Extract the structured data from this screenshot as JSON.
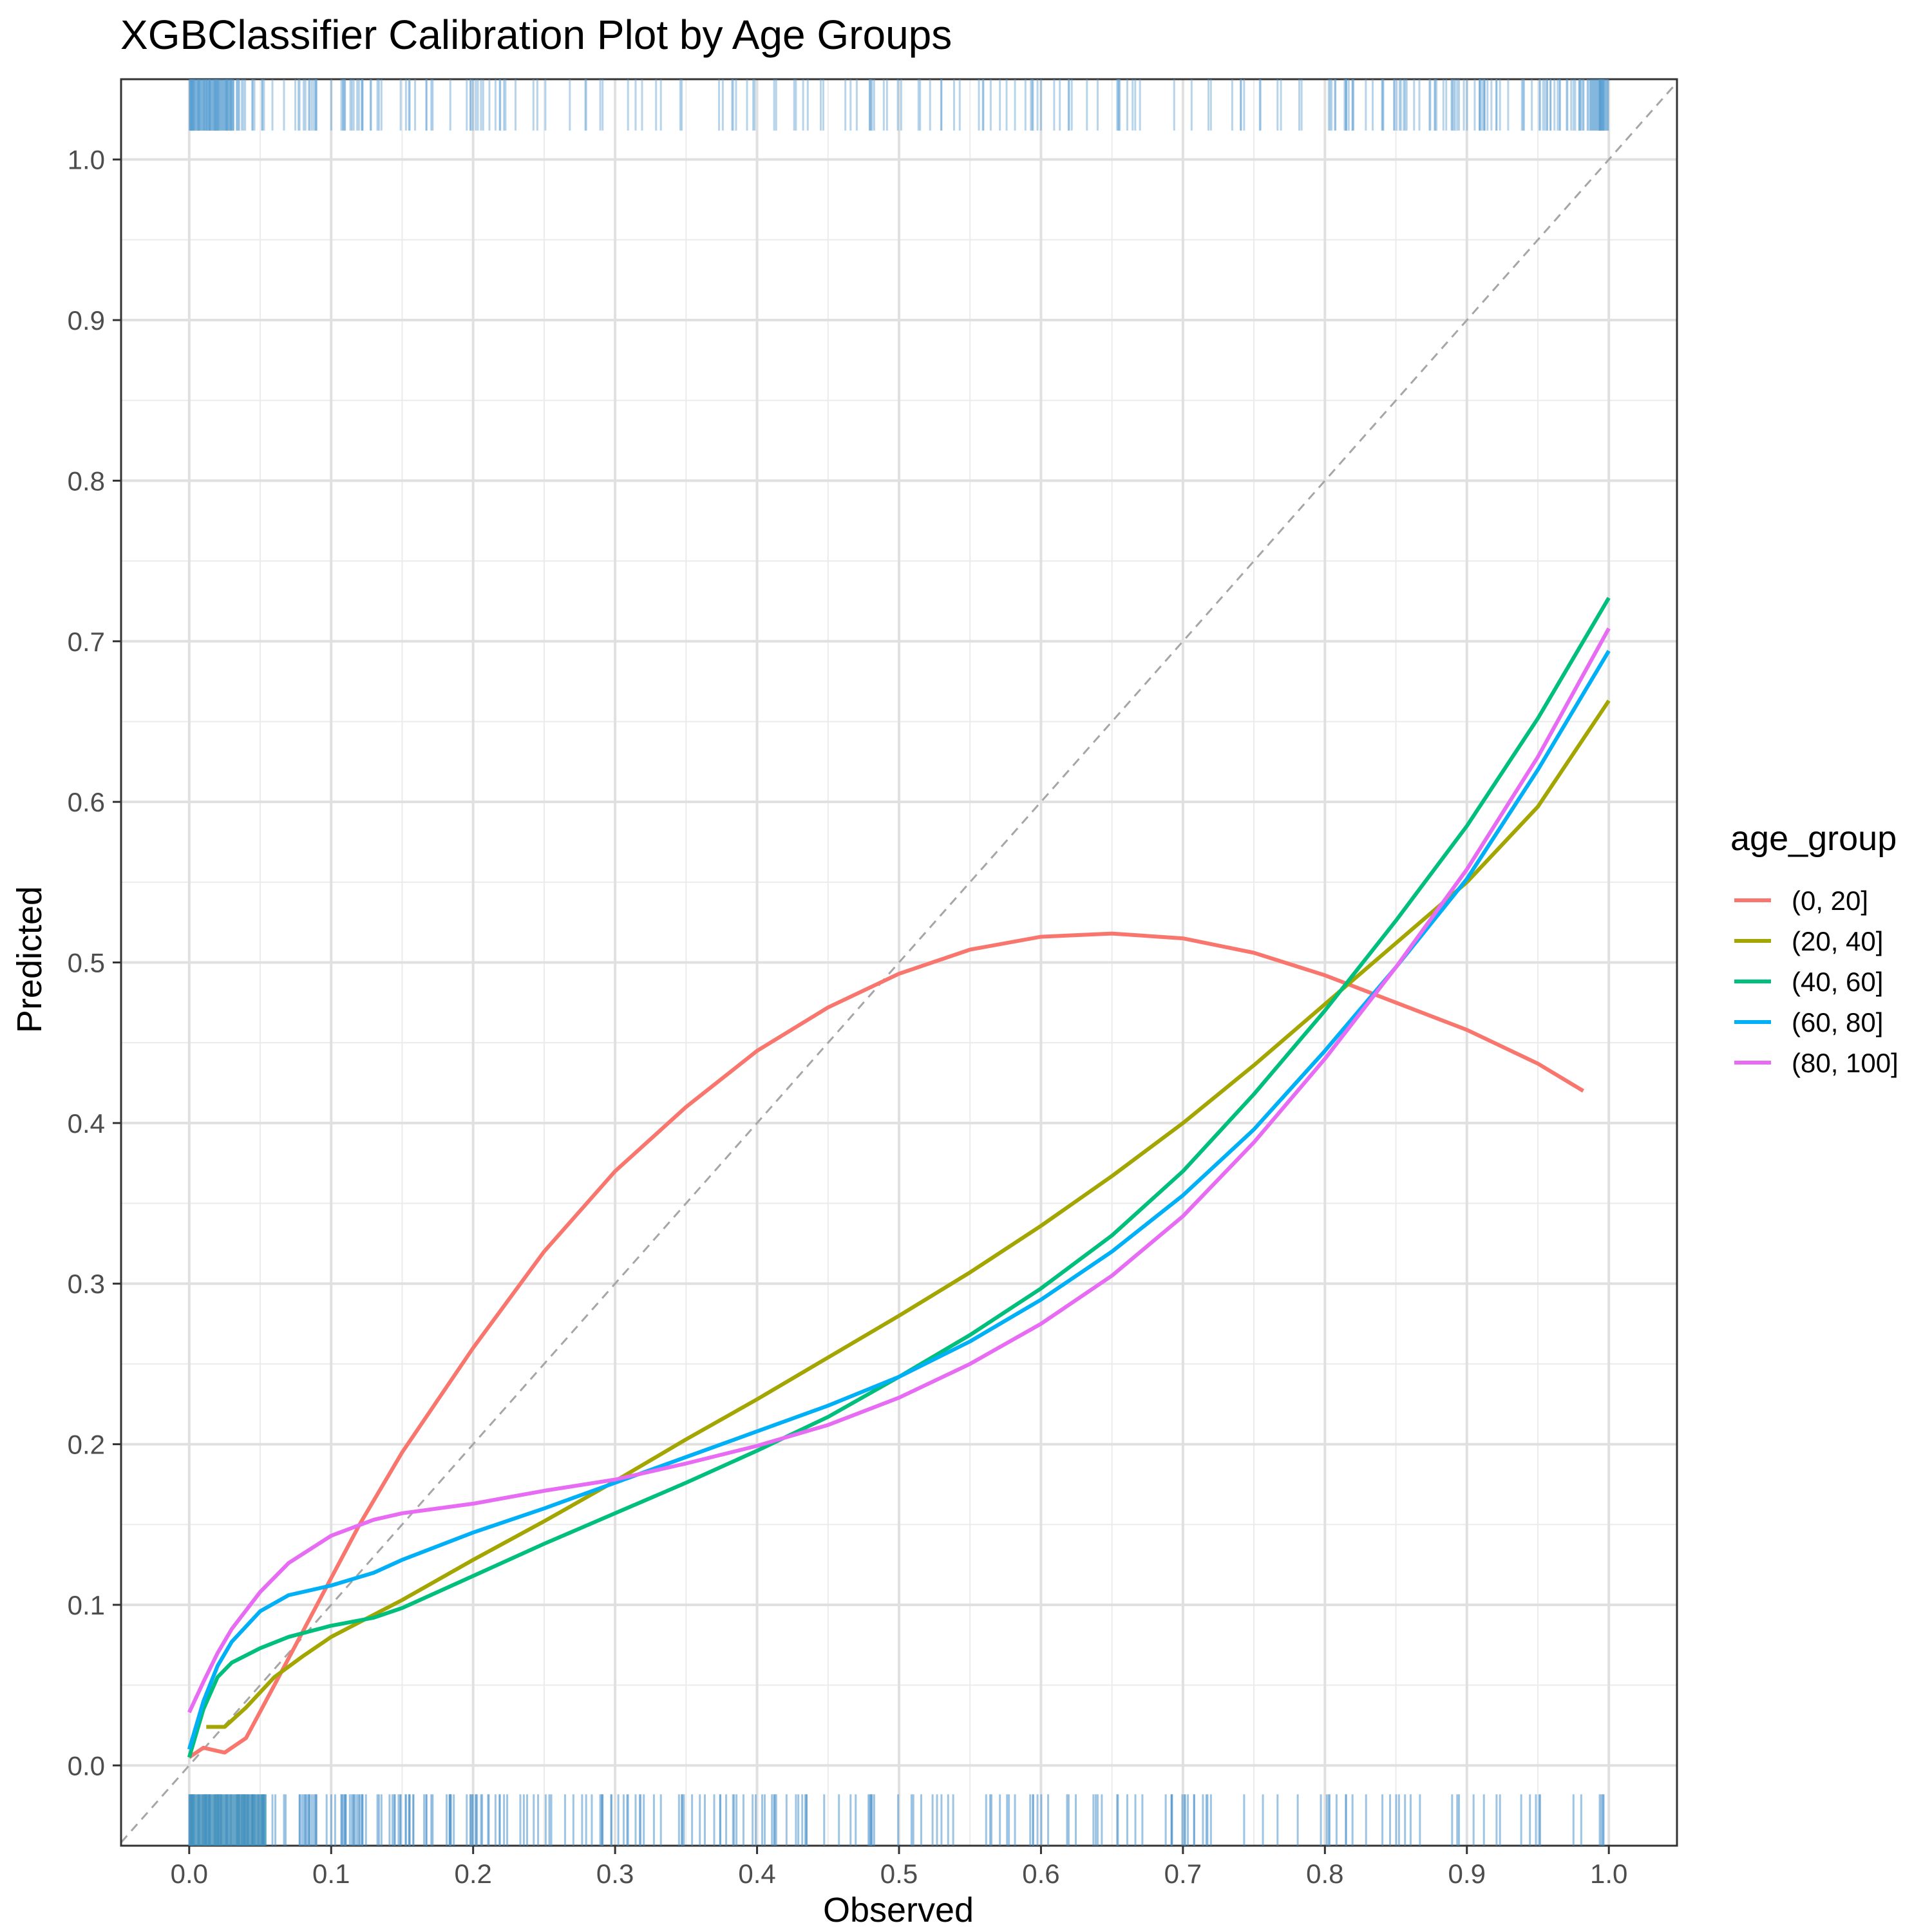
{
  "chart_data": {
    "type": "line",
    "title": "XGBClassifier Calibration Plot by Age Groups",
    "xlabel": "Observed",
    "ylabel": "Predicted",
    "xlim": [
      -0.048,
      1.048
    ],
    "ylim": [
      -0.05,
      1.05
    ],
    "xticks": [
      "0.0",
      "0.1",
      "0.2",
      "0.3",
      "0.4",
      "0.5",
      "0.6",
      "0.7",
      "0.8",
      "0.9",
      "1.0"
    ],
    "yticks": [
      "0.0",
      "0.1",
      "0.2",
      "0.3",
      "0.4",
      "0.5",
      "0.6",
      "0.7",
      "0.8",
      "0.9",
      "1.0"
    ],
    "grid": true,
    "reference_line": "dashed diagonal y = x",
    "rug": "predicted probabilities shown as rugs at top and bottom",
    "legend": {
      "title": "age_group",
      "position": "right"
    },
    "series": [
      {
        "name": "(0, 20]",
        "color": "#F8766D",
        "x": [
          0.0,
          0.01,
          0.025,
          0.04,
          0.06,
          0.09,
          0.12,
          0.15,
          0.2,
          0.25,
          0.3,
          0.35,
          0.4,
          0.45,
          0.5,
          0.55,
          0.6,
          0.65,
          0.7,
          0.75,
          0.8,
          0.85,
          0.9,
          0.95,
          0.982
        ],
        "y": [
          0.005,
          0.011,
          0.008,
          0.017,
          0.05,
          0.1,
          0.15,
          0.195,
          0.26,
          0.32,
          0.37,
          0.41,
          0.445,
          0.472,
          0.493,
          0.508,
          0.516,
          0.518,
          0.515,
          0.506,
          0.492,
          0.475,
          0.458,
          0.437,
          0.42
        ]
      },
      {
        "name": "(20, 40]",
        "color": "#A3A500",
        "x": [
          0.012,
          0.025,
          0.04,
          0.06,
          0.08,
          0.1,
          0.15,
          0.2,
          0.25,
          0.3,
          0.35,
          0.4,
          0.45,
          0.5,
          0.55,
          0.6,
          0.65,
          0.7,
          0.75,
          0.8,
          0.85,
          0.9,
          0.95,
          1.0
        ],
        "y": [
          0.024,
          0.024,
          0.036,
          0.055,
          0.068,
          0.08,
          0.103,
          0.128,
          0.152,
          0.177,
          0.203,
          0.228,
          0.254,
          0.28,
          0.307,
          0.336,
          0.367,
          0.4,
          0.436,
          0.474,
          0.512,
          0.55,
          0.597,
          0.663
        ]
      },
      {
        "name": "(40, 60]",
        "color": "#00BF7D",
        "x": [
          0.0,
          0.01,
          0.02,
          0.03,
          0.05,
          0.07,
          0.1,
          0.13,
          0.15,
          0.2,
          0.25,
          0.3,
          0.35,
          0.4,
          0.45,
          0.5,
          0.55,
          0.6,
          0.65,
          0.7,
          0.75,
          0.8,
          0.85,
          0.9,
          0.95,
          1.0
        ],
        "y": [
          0.005,
          0.035,
          0.055,
          0.064,
          0.073,
          0.08,
          0.087,
          0.092,
          0.098,
          0.118,
          0.138,
          0.157,
          0.176,
          0.196,
          0.217,
          0.242,
          0.268,
          0.297,
          0.33,
          0.37,
          0.418,
          0.47,
          0.526,
          0.585,
          0.652,
          0.727
        ]
      },
      {
        "name": "(60, 80]",
        "color": "#00B0F6",
        "x": [
          0.0,
          0.01,
          0.02,
          0.03,
          0.05,
          0.07,
          0.1,
          0.13,
          0.15,
          0.2,
          0.25,
          0.3,
          0.35,
          0.4,
          0.45,
          0.5,
          0.55,
          0.6,
          0.65,
          0.7,
          0.75,
          0.8,
          0.85,
          0.9,
          0.95,
          1.0
        ],
        "y": [
          0.01,
          0.04,
          0.062,
          0.077,
          0.096,
          0.106,
          0.112,
          0.12,
          0.128,
          0.145,
          0.16,
          0.176,
          0.192,
          0.208,
          0.224,
          0.242,
          0.264,
          0.29,
          0.32,
          0.355,
          0.396,
          0.445,
          0.497,
          0.552,
          0.62,
          0.694
        ]
      },
      {
        "name": "(80, 100]",
        "color": "#E76BF3",
        "x": [
          0.0,
          0.01,
          0.02,
          0.03,
          0.05,
          0.07,
          0.1,
          0.13,
          0.15,
          0.2,
          0.25,
          0.3,
          0.35,
          0.4,
          0.45,
          0.5,
          0.55,
          0.6,
          0.65,
          0.7,
          0.75,
          0.8,
          0.85,
          0.9,
          0.95,
          1.0
        ],
        "y": [
          0.033,
          0.052,
          0.07,
          0.085,
          0.108,
          0.126,
          0.143,
          0.153,
          0.157,
          0.163,
          0.171,
          0.178,
          0.188,
          0.199,
          0.212,
          0.229,
          0.25,
          0.275,
          0.305,
          0.342,
          0.388,
          0.44,
          0.497,
          0.558,
          0.628,
          0.708
        ]
      }
    ]
  }
}
